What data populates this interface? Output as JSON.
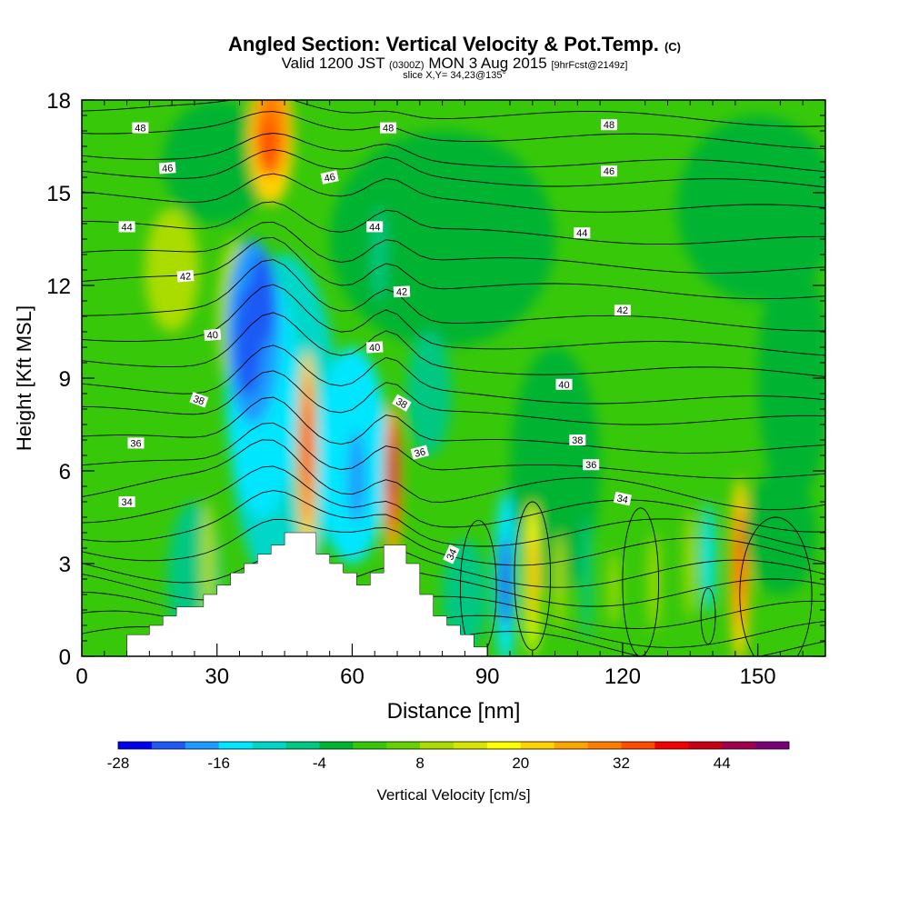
{
  "title": {
    "main": "Angled Section: Vertical Velocity & Pot.Temp.",
    "mark": "(C)",
    "sub_valid": "Valid 1200 JST",
    "sub_zulu": "(0300Z)",
    "sub_date": "MON 3 Aug 2015",
    "sub_fcst": "[9hrFcst@2149z]",
    "slice": "slice X,Y= 34,23@135°"
  },
  "chart_data": {
    "type": "heatmap",
    "xlabel": "Distance [nm]",
    "ylabel": "Height [Kft MSL]",
    "xlim": [
      0,
      165
    ],
    "ylim": [
      0,
      18
    ],
    "xticks": [
      "0",
      "30",
      "60",
      "90",
      "120",
      "150"
    ],
    "yticks": [
      "0",
      "3",
      "6",
      "9",
      "12",
      "15",
      "18"
    ],
    "grid": false,
    "colorbar": {
      "label": "Vertical Velocity [cm/s]",
      "ticks": [
        "-28",
        "-16",
        "-4",
        "8",
        "20",
        "32",
        "44"
      ],
      "levels": [
        -28,
        -24,
        -20,
        -16,
        -12,
        -8,
        -4,
        0,
        4,
        8,
        12,
        16,
        20,
        24,
        28,
        32,
        36,
        40,
        44,
        48,
        52
      ],
      "colors": [
        "#0000f0",
        "#1e5af5",
        "#1e9bff",
        "#00e6ff",
        "#00d7c8",
        "#00c882",
        "#00b432",
        "#37c80a",
        "#64d200",
        "#aadc00",
        "#d7e600",
        "#ffff00",
        "#ffd200",
        "#ffa500",
        "#ff7d00",
        "#ff4b00",
        "#f50000",
        "#c80014",
        "#a0004b",
        "#780078"
      ]
    },
    "terrain_kft": [
      [
        0,
        0
      ],
      [
        10,
        0
      ],
      [
        10,
        0.7
      ],
      [
        15,
        0.7
      ],
      [
        15,
        1.0
      ],
      [
        18,
        1.0
      ],
      [
        18,
        1.3
      ],
      [
        21,
        1.3
      ],
      [
        21,
        1.6
      ],
      [
        27,
        1.6
      ],
      [
        27,
        2.0
      ],
      [
        30,
        2.0
      ],
      [
        30,
        2.3
      ],
      [
        33,
        2.3
      ],
      [
        33,
        2.7
      ],
      [
        36,
        2.7
      ],
      [
        36,
        3.0
      ],
      [
        39,
        3.0
      ],
      [
        39,
        3.3
      ],
      [
        42,
        3.3
      ],
      [
        42,
        3.6
      ],
      [
        45,
        3.6
      ],
      [
        45,
        4.0
      ],
      [
        52,
        4.0
      ],
      [
        52,
        3.3
      ],
      [
        55,
        3.3
      ],
      [
        55,
        3.0
      ],
      [
        58,
        3.0
      ],
      [
        58,
        2.7
      ],
      [
        61,
        2.7
      ],
      [
        61,
        2.3
      ],
      [
        64,
        2.3
      ],
      [
        64,
        2.7
      ],
      [
        67,
        2.7
      ],
      [
        67,
        3.6
      ],
      [
        72,
        3.6
      ],
      [
        72,
        3.0
      ],
      [
        75,
        3.0
      ],
      [
        75,
        2.0
      ],
      [
        78,
        2.0
      ],
      [
        78,
        1.3
      ],
      [
        81,
        1.3
      ],
      [
        81,
        1.0
      ],
      [
        84,
        1.0
      ],
      [
        84,
        0.7
      ],
      [
        87,
        0.7
      ],
      [
        87,
        0.3
      ],
      [
        90,
        0.3
      ],
      [
        90,
        0
      ],
      [
        165,
        0
      ]
    ],
    "theta_label_side": "white boxes",
    "theta_contour_labels": [
      {
        "x": 13,
        "y": 17.1,
        "text": "48",
        "angle": 0
      },
      {
        "x": 68,
        "y": 17.1,
        "text": "48",
        "angle": 0
      },
      {
        "x": 117,
        "y": 17.2,
        "text": "48",
        "angle": 0
      },
      {
        "x": 19,
        "y": 15.8,
        "text": "46",
        "angle": -4
      },
      {
        "x": 55,
        "y": 15.5,
        "text": "46",
        "angle": -12
      },
      {
        "x": 117,
        "y": 15.7,
        "text": "46",
        "angle": 0
      },
      {
        "x": 10,
        "y": 13.9,
        "text": "44",
        "angle": 0
      },
      {
        "x": 65,
        "y": 13.9,
        "text": "44",
        "angle": 0
      },
      {
        "x": 111,
        "y": 13.7,
        "text": "44",
        "angle": 0
      },
      {
        "x": 23,
        "y": 12.3,
        "text": "42",
        "angle": -5
      },
      {
        "x": 71,
        "y": 11.8,
        "text": "42",
        "angle": -3
      },
      {
        "x": 120,
        "y": 11.2,
        "text": "42",
        "angle": 0
      },
      {
        "x": 29,
        "y": 10.4,
        "text": "40",
        "angle": -5
      },
      {
        "x": 65,
        "y": 10.0,
        "text": "40",
        "angle": -3
      },
      {
        "x": 107,
        "y": 8.8,
        "text": "40",
        "angle": 0
      },
      {
        "x": 26,
        "y": 8.3,
        "text": "38",
        "angle": 20
      },
      {
        "x": 71,
        "y": 8.2,
        "text": "38",
        "angle": 30
      },
      {
        "x": 110,
        "y": 7.0,
        "text": "38",
        "angle": 0
      },
      {
        "x": 12,
        "y": 6.9,
        "text": "36",
        "angle": 0
      },
      {
        "x": 75,
        "y": 6.6,
        "text": "36",
        "angle": -15
      },
      {
        "x": 113,
        "y": 6.2,
        "text": "36",
        "angle": 0
      },
      {
        "x": 10,
        "y": 5.0,
        "text": "34",
        "angle": 0
      },
      {
        "x": 82,
        "y": 3.3,
        "text": "34",
        "angle": -65
      },
      {
        "x": 120,
        "y": 5.1,
        "text": "34",
        "angle": 12
      }
    ]
  }
}
